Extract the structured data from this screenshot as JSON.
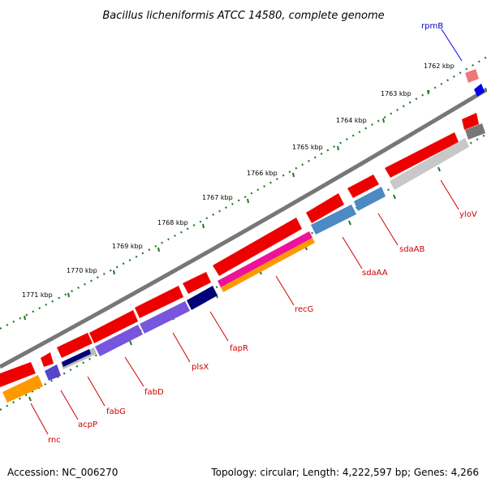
{
  "title": "Bacillus licheniformis ATCC 14580, complete genome",
  "footer": {
    "accession": "Accession: NC_006270",
    "summary": "Topology: circular; Length: 4,222,597 bp; Genes: 4,266"
  },
  "ticks": [
    "1762 kbp",
    "1763 kbp",
    "1764 kbp",
    "1765 kbp",
    "1766 kbp",
    "1767 kbp",
    "1768 kbp",
    "1769 kbp",
    "1770 kbp",
    "1771 kbp"
  ],
  "genes": [
    {
      "name": "rpmB",
      "color": "#0000cc"
    },
    {
      "name": "ylоV",
      "color": "#cc0000"
    },
    {
      "name": "sdaAB",
      "color": "#cc0000"
    },
    {
      "name": "sdaAA",
      "color": "#cc0000"
    },
    {
      "name": "recG",
      "color": "#cc0000"
    },
    {
      "name": "fapR",
      "color": "#cc0000"
    },
    {
      "name": "plsX",
      "color": "#cc0000"
    },
    {
      "name": "fabD",
      "color": "#cc0000"
    },
    {
      "name": "fabG",
      "color": "#cc0000"
    },
    {
      "name": "acpP",
      "color": "#cc0000"
    },
    {
      "name": "rnc",
      "color": "#cc0000"
    }
  ],
  "colors": {
    "cds": "#ee0000",
    "backbone": "#777777",
    "ticks": "#227722",
    "leader": "#cc0000"
  }
}
